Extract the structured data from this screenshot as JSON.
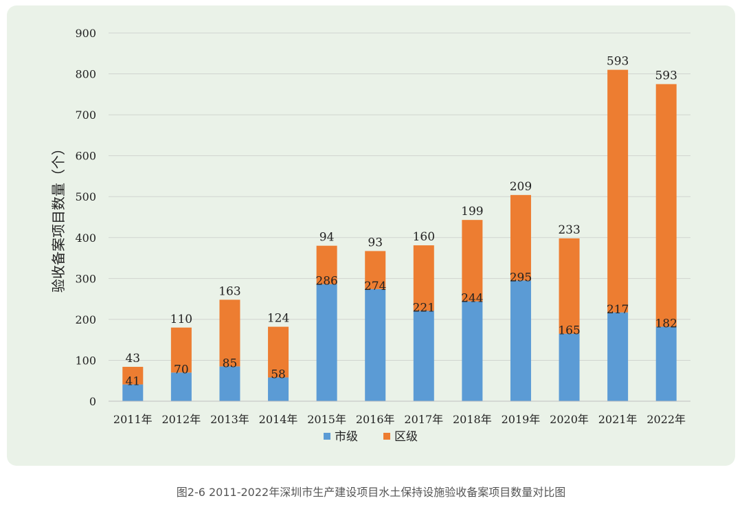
{
  "caption": "图2-6 2011-2022年深圳市生产建设项目水土保持设施验收备案项目数量对比图",
  "chart_data": {
    "type": "bar",
    "stacked": true,
    "categories": [
      "2011年",
      "2012年",
      "2013年",
      "2014年",
      "2015年",
      "2016年",
      "2017年",
      "2018年",
      "2019年",
      "2020年",
      "2021年",
      "2022年"
    ],
    "series": [
      {
        "name": "市级",
        "color": "#5b9bd5",
        "values": [
          41,
          70,
          85,
          58,
          286,
          274,
          221,
          244,
          295,
          165,
          217,
          182
        ]
      },
      {
        "name": "区级",
        "color": "#ed7d31",
        "values": [
          43,
          110,
          163,
          124,
          94,
          93,
          160,
          199,
          209,
          233,
          593,
          593
        ]
      }
    ],
    "ylabel": "验收备案项目数量（个）",
    "xlabel": "",
    "ylim": [
      0,
      900
    ],
    "yticks": [
      0,
      100,
      200,
      300,
      400,
      500,
      600,
      700,
      800,
      900
    ],
    "grid": true,
    "legend": "bottom"
  }
}
